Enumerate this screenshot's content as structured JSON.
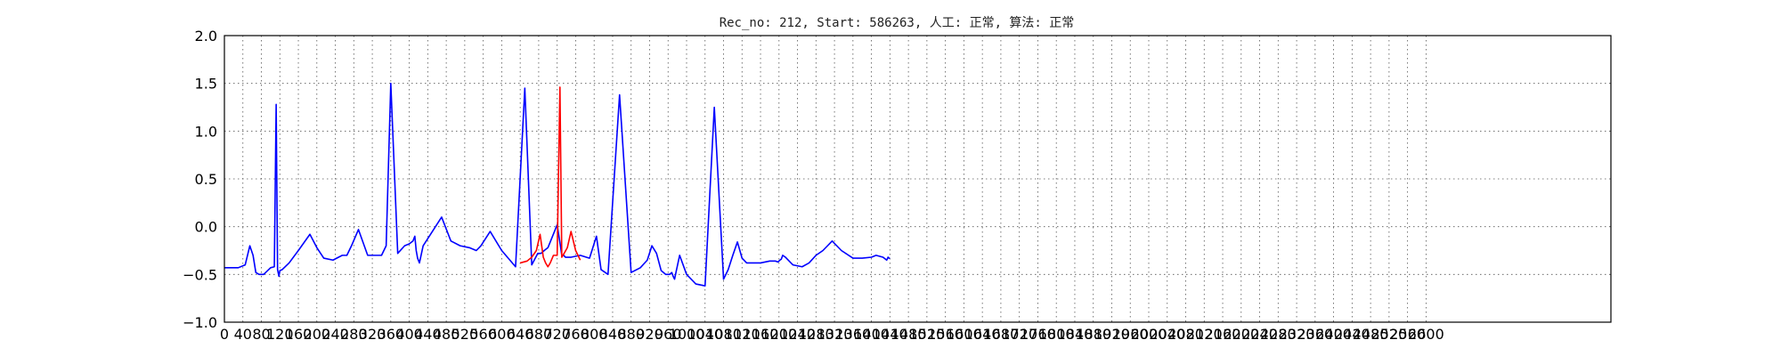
{
  "chart_data": {
    "type": "line",
    "title": "Rec_no: 212, Start: 586263, 人工: 正常, 算法: 正常",
    "xlabel": "",
    "ylabel": "",
    "xlim": [
      0,
      3000
    ],
    "ylim": [
      -1.0,
      2.0
    ],
    "grid": true,
    "yticks": [
      2.0,
      1.5,
      1.0,
      0.5,
      0.0,
      -0.5,
      -1.0
    ],
    "ytick_labels": [
      "2.0",
      "1.5",
      "1.0",
      "0.5",
      "0.0",
      "−0.5",
      "−1.0"
    ],
    "xticks": [
      0,
      40,
      80,
      120,
      160,
      200,
      240,
      280,
      320,
      360,
      400,
      440,
      480,
      520,
      560,
      600,
      640,
      680,
      720,
      760,
      800,
      840,
      880,
      920,
      960,
      1000,
      1040,
      1080,
      1120,
      1160,
      1200,
      1240,
      1280,
      1320,
      1360,
      1400,
      1440,
      1480,
      1520,
      1560,
      1600,
      1640,
      1680,
      1720,
      1760,
      1800,
      1840,
      1880,
      1920,
      1960,
      2000,
      2040,
      2080,
      2120,
      2160,
      2200,
      2240,
      2280,
      2320,
      2360,
      2400,
      2440,
      2480,
      2520,
      2560,
      2600
    ],
    "xtick_labels": [
      "0",
      "40",
      "80",
      "120",
      "160",
      "200",
      "240",
      "280",
      "320",
      "360",
      "400",
      "440",
      "480",
      "520",
      "560",
      "600",
      "640",
      "680",
      "720",
      "760",
      "800",
      "840",
      "880",
      "920",
      "960",
      "1000",
      "1040",
      "1080",
      "1120",
      "1160",
      "1200",
      "1240",
      "1280",
      "1320",
      "1360",
      "1400",
      "1440",
      "1480",
      "1520",
      "1560",
      "1600",
      "1640",
      "1680",
      "1720",
      "1760",
      "1800",
      "1840",
      "1880",
      "1920",
      "1960",
      "2000",
      "2040",
      "2080",
      "2120",
      "2160",
      "2200",
      "2240",
      "2280",
      "2320",
      "2360",
      "2400",
      "2440",
      "2480",
      "2520",
      "2560",
      "2600"
    ],
    "series": [
      {
        "color": "#0000ff",
        "x": [
          0,
          30,
          45,
          55,
          62,
          68,
          75,
          85,
          100,
          108,
          112,
          115,
          118,
          120,
          125,
          140,
          160,
          185,
          200,
          215,
          235,
          255,
          265,
          275,
          290,
          310,
          340,
          350,
          360,
          375,
          390,
          400,
          408,
          412,
          415,
          418,
          422,
          430,
          450,
          470,
          490,
          510,
          530,
          545,
          555,
          575,
          600,
          630,
          650,
          665,
          678,
          685,
          692,
          700,
          710,
          720,
          727,
          730,
          734,
          738,
          742,
          750,
          770,
          790,
          805,
          815,
          830,
          855,
          880,
          900,
          915,
          925,
          935,
          945,
          955,
          963,
          968,
          971,
          974,
          977,
          985,
          1000,
          1020,
          1040,
          1060,
          1080,
          1090,
          1100,
          1110,
          1120,
          1130,
          1160,
          1180,
          1192,
          1198,
          1202,
          1205,
          1208,
          1214,
          1230,
          1250,
          1265,
          1280,
          1295,
          1315,
          1335,
          1360,
          1380,
          1400,
          1410,
          1425,
          1433,
          1436,
          1438,
          1440
        ],
        "y": [
          -0.43,
          -0.43,
          -0.4,
          -0.2,
          -0.3,
          -0.48,
          -0.5,
          -0.5,
          -0.43,
          -0.42,
          1.28,
          -0.45,
          -0.52,
          -0.46,
          -0.45,
          -0.38,
          -0.25,
          -0.08,
          -0.22,
          -0.33,
          -0.35,
          -0.3,
          -0.3,
          -0.2,
          -0.03,
          -0.3,
          -0.3,
          -0.2,
          1.5,
          -0.28,
          -0.2,
          -0.18,
          -0.15,
          -0.1,
          -0.25,
          -0.33,
          -0.38,
          -0.2,
          -0.05,
          0.1,
          -0.15,
          -0.2,
          -0.22,
          -0.25,
          -0.2,
          -0.05,
          -0.25,
          -0.42,
          1.45,
          -0.4,
          -0.28,
          -0.28,
          -0.25,
          -0.22,
          -0.1,
          0.02,
          -0.2,
          -0.3,
          -0.3,
          -0.32,
          -0.32,
          -0.32,
          -0.3,
          -0.33,
          -0.1,
          -0.45,
          -0.5,
          1.38,
          -0.48,
          -0.43,
          -0.35,
          -0.2,
          -0.28,
          -0.46,
          -0.5,
          -0.5,
          -0.48,
          -0.52,
          -0.55,
          -0.48,
          -0.3,
          -0.5,
          -0.6,
          -0.62,
          1.25,
          -0.55,
          -0.45,
          -0.3,
          -0.16,
          -0.33,
          -0.38,
          -0.38,
          -0.36,
          -0.36,
          -0.37,
          -0.35,
          -0.34,
          -0.3,
          -0.32,
          -0.4,
          -0.42,
          -0.38,
          -0.3,
          -0.25,
          -0.15,
          -0.25,
          -0.33,
          -0.33,
          -0.32,
          -0.3,
          -0.32,
          -0.35,
          -0.32,
          -0.33,
          -0.33
        ]
      },
      {
        "color": "#ff0000",
        "x": [
          640,
          655,
          665,
          675,
          683,
          690,
          695,
          700,
          705,
          712,
          720,
          726,
          730,
          735,
          742,
          750,
          760,
          770
        ],
        "y": [
          -0.38,
          -0.36,
          -0.32,
          -0.25,
          -0.08,
          -0.32,
          -0.38,
          -0.42,
          -0.38,
          -0.3,
          -0.3,
          1.46,
          -0.32,
          -0.28,
          -0.22,
          -0.05,
          -0.25,
          -0.35
        ]
      }
    ]
  }
}
